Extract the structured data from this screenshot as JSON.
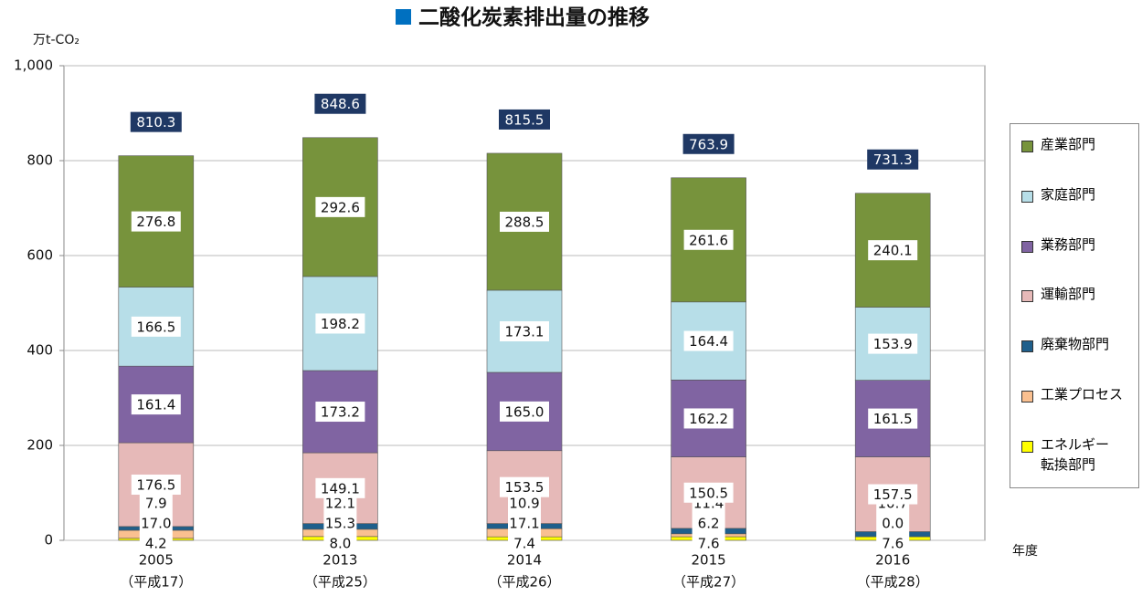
{
  "chart_data": {
    "type": "stacked-bar",
    "title": "二酸化炭素排出量の推移",
    "y_label": "万t-CO₂",
    "x_label": "年度",
    "categories": [
      "2005",
      "2013",
      "2014",
      "2015",
      "2016"
    ],
    "category_sublabels": [
      "（平成17）",
      "（平成25）",
      "（平成26）",
      "（平成27）",
      "（平成28）"
    ],
    "series": [
      {
        "name": "エネルギー\n転換部門",
        "color": "#ffff00",
        "values": [
          4.2,
          8.0,
          7.4,
          7.6,
          7.6
        ],
        "value_labels": [
          "4.2",
          "8.0",
          "7.4",
          "7.6",
          "7.6"
        ]
      },
      {
        "name": "工業プロセス",
        "color": "#fac090",
        "values": [
          17.0,
          15.3,
          17.1,
          6.2,
          0.0
        ],
        "value_labels": [
          "17.0",
          "15.3",
          "17.1",
          "6.2",
          "0.0"
        ]
      },
      {
        "name": "廃棄物部門",
        "color": "#1f5f8b",
        "values": [
          7.9,
          12.1,
          10.9,
          11.4,
          10.7
        ],
        "value_labels": [
          "7.9",
          "12.1",
          "10.9",
          "11.4",
          "10.7"
        ]
      },
      {
        "name": "運輸部門",
        "color": "#e6b9b8",
        "values": [
          176.5,
          149.1,
          153.5,
          150.5,
          157.5
        ],
        "value_labels": [
          "176.5",
          "149.1",
          "153.5",
          "150.5",
          "157.5"
        ]
      },
      {
        "name": "業務部門",
        "color": "#8064a2",
        "values": [
          161.4,
          173.2,
          165.0,
          162.2,
          161.5
        ],
        "value_labels": [
          "161.4",
          "173.2",
          "165.0",
          "162.2",
          "161.5"
        ]
      },
      {
        "name": "家庭部門",
        "color": "#b7dee8",
        "values": [
          166.5,
          198.2,
          173.1,
          164.4,
          153.9
        ],
        "value_labels": [
          "166.5",
          "198.2",
          "173.1",
          "164.4",
          "153.9"
        ]
      },
      {
        "name": "産業部門",
        "color": "#77933c",
        "values": [
          276.8,
          292.6,
          288.5,
          261.6,
          240.1
        ],
        "value_labels": [
          "276.8",
          "292.6",
          "288.5",
          "261.6",
          "240.1"
        ]
      }
    ],
    "totals": [
      810.3,
      848.6,
      815.5,
      763.9,
      731.3
    ],
    "ylim": [
      0,
      1000
    ],
    "yticks": [
      0,
      200,
      400,
      600,
      800,
      {
        "value": 1000,
        "label": "1,000"
      }
    ],
    "grid": true
  }
}
